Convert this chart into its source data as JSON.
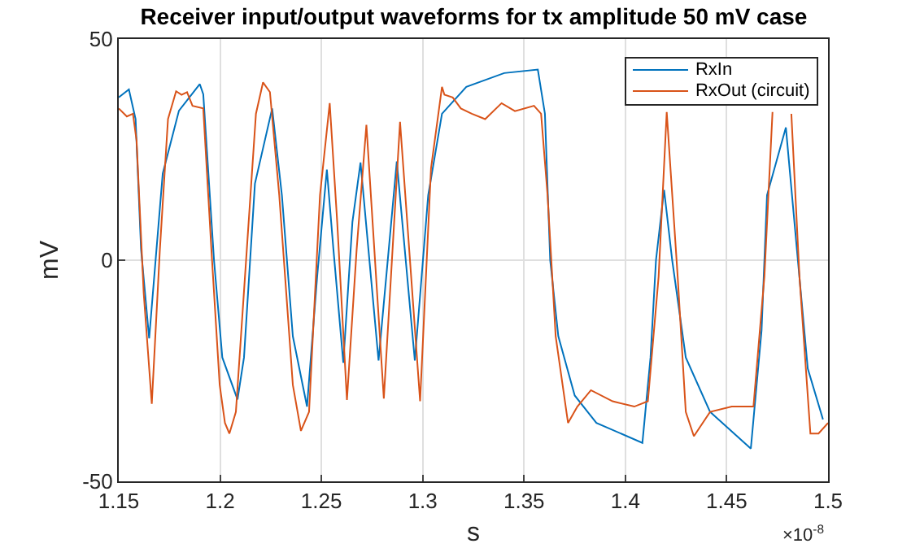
{
  "chart_data": {
    "type": "line",
    "title": "Receiver input/output waveforms for tx amplitude 50 mV case",
    "xlabel": "s",
    "ylabel": "mV",
    "annotations": [
      "×10$^{-8}$"
    ],
    "xlim": [
      1.15,
      1.5
    ],
    "xticks": [
      1.15,
      1.2,
      1.25,
      1.3,
      1.35,
      1.4,
      1.45,
      1.5
    ],
    "ylim": [
      -50,
      50
    ],
    "yticks": [
      -50,
      0,
      50
    ],
    "grid": true,
    "legend": "top right",
    "line_style": "solid",
    "marker": "none",
    "series": [
      {
        "name": "RxIn",
        "color": "#0072bd",
        "x": [
          1.15,
          1.155,
          1.1583,
          1.161,
          1.165,
          1.1717,
          1.1797,
          1.19,
          1.1917,
          1.197,
          1.2011,
          1.2086,
          1.2118,
          1.2172,
          1.2257,
          1.2305,
          1.2359,
          1.2429,
          1.2479,
          1.2527,
          1.2559,
          1.2608,
          1.2653,
          1.2693,
          1.2782,
          1.2872,
          1.2961,
          1.3027,
          1.3095,
          1.3215,
          1.3402,
          1.3568,
          1.3603,
          1.3629,
          1.3669,
          1.375,
          1.3857,
          1.4084,
          1.4124,
          1.4151,
          1.4191,
          1.4231,
          1.4298,
          1.4418,
          1.4619,
          1.4672,
          1.4699,
          1.4792,
          1.4846,
          1.49,
          1.4975
        ],
        "values": [
          36.8,
          38.6,
          31.9,
          2.5,
          -17.7,
          19.6,
          33.8,
          39.8,
          37.5,
          0,
          -22,
          -31.5,
          -22,
          17.3,
          34.3,
          14.7,
          -17.2,
          -33.1,
          -3.7,
          20.5,
          2.6,
          -23.2,
          8.6,
          22.1,
          -22.7,
          22.3,
          -22.7,
          14.7,
          33.1,
          39.2,
          42.3,
          43.1,
          33.1,
          0,
          -17.2,
          -30.6,
          -36.8,
          -41.3,
          -22,
          0,
          15.9,
          0,
          -22,
          -34.3,
          -42.6,
          -15.9,
          14.7,
          30,
          2.6,
          -24.5,
          -36
        ]
      },
      {
        "name": "RxOut (circuit)",
        "color": "#d95319",
        "x": [
          1.15,
          1.154,
          1.157,
          1.1588,
          1.1623,
          1.1663,
          1.1703,
          1.1743,
          1.1783,
          1.181,
          1.1837,
          1.1864,
          1.1917,
          1.1957,
          1.1998,
          1.2024,
          1.2046,
          1.2078,
          1.2132,
          1.2177,
          1.2212,
          1.2246,
          1.2292,
          1.2359,
          1.2399,
          1.2439,
          1.2493,
          1.2541,
          1.2578,
          1.2626,
          1.2674,
          1.2722,
          1.2808,
          1.2888,
          1.2987,
          1.3041,
          1.3095,
          1.3107,
          1.3148,
          1.3188,
          1.3242,
          1.3308,
          1.3389,
          1.3455,
          1.3549,
          1.3584,
          1.3616,
          1.3656,
          1.3717,
          1.3763,
          1.383,
          1.3937,
          1.4044,
          1.4111,
          1.4164,
          1.4204,
          1.4258,
          1.4298,
          1.4338,
          1.4418,
          1.4525,
          1.4632,
          1.4686,
          1.4726,
          1.4779,
          1.4819,
          1.4859,
          1.4913,
          1.4953,
          1.5
        ],
        "values": [
          34.3,
          32.5,
          33.1,
          27,
          -7.4,
          -32.5,
          2.5,
          31.9,
          38.2,
          37.4,
          38,
          34.9,
          34.3,
          2.5,
          -28.2,
          -36.8,
          -39.2,
          -34.3,
          2.5,
          33.1,
          40.2,
          38,
          14.7,
          -28.2,
          -38.6,
          -34.3,
          14.7,
          35.5,
          8.6,
          -31.6,
          2.5,
          30.6,
          -31.3,
          31.3,
          -31.9,
          20.8,
          39.2,
          37.4,
          36.8,
          34.3,
          33.1,
          31.9,
          35.5,
          33.7,
          34.9,
          33.1,
          14.7,
          -17.2,
          -36.8,
          -33.1,
          -29.4,
          -31.9,
          -33.1,
          -31.9,
          -3.7,
          33.5,
          -3.7,
          -34.3,
          -39.8,
          -34.3,
          -33.1,
          -33.1,
          -3.7,
          33.5,
          null,
          33.1,
          -3.7,
          -39.2,
          -39.2,
          -36.8
        ]
      }
    ]
  }
}
